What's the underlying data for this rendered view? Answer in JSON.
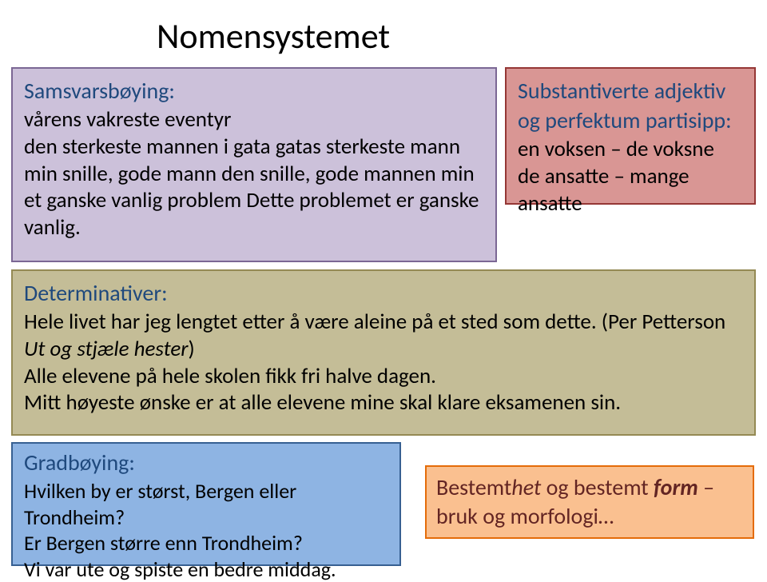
{
  "title": "Nomensystemet",
  "samsvars": {
    "heading": "Samsvarsbøying:",
    "l1": "vårens vakreste eventyr",
    "l2": "den sterkeste mannen i gata gatas sterkeste mann",
    "l3": "min snille, gode mann den snille, gode mannen min",
    "l4": "et ganske vanlig problem Dette problemet er ganske vanlig."
  },
  "substantiv": {
    "h1": "Substantiverte adjektiv",
    "h2": "og perfektum partisipp:",
    "l1": "en voksen – de voksne",
    "l2": "de ansatte – mange ansatte"
  },
  "determin": {
    "heading": "Determinativer:",
    "l1a": "Hele livet har jeg lengtet etter å være aleine på et sted som dette. (Per Petterson ",
    "l1b": "Ut og stjæle hester",
    "l1c": ")",
    "l2": "Alle elevene på hele skolen fikk fri halve dagen.",
    "l3": "Mitt høyeste ønske er at alle elevene mine skal klare eksamenen sin."
  },
  "gradb": {
    "heading": "Gradbøying:",
    "l1": "Hvilken by er størst, Bergen eller Trondheim?",
    "l2": "Er Bergen større enn Trondheim?",
    "l3": "Vi var ute og spiste en bedre middag."
  },
  "bestemt": {
    "t1": "Bestemt",
    "t2": "het",
    "t3": " og bestemt ",
    "t4": "form",
    "t5": " – bruk og morfologi…"
  },
  "colors": {
    "samsvars_bg": "#ccc1da",
    "samsvars_border": "#7b6794",
    "substantiv_bg": "#d99694",
    "substantiv_border": "#953735",
    "determin_bg": "#c4bd97",
    "determin_border": "#948a54",
    "gradb_bg": "#8eb4e3",
    "gradb_border": "#376092",
    "bestemt_bg": "#fac090",
    "bestemt_border": "#e46c0a",
    "heading_color": "#1f497d",
    "bestemt_text": "#632523"
  }
}
